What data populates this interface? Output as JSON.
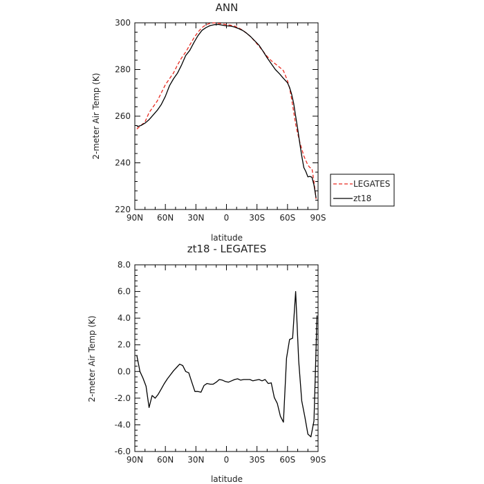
{
  "chart_data": [
    {
      "type": "line",
      "title": "ANN",
      "xlabel": "latitude",
      "ylabel": "2-meter Air Temp (K)",
      "x_tick_labels": [
        "90N",
        "60N",
        "30N",
        "0",
        "30S",
        "60S",
        "90S"
      ],
      "x_ticks": [
        90,
        60,
        30,
        0,
        -30,
        -60,
        -90
      ],
      "x_direction": "90N to 90S (latitude decreasing left to right)",
      "xlim": [
        90,
        -90
      ],
      "ylim": [
        220,
        300
      ],
      "y_ticks": [
        220,
        240,
        260,
        280,
        300
      ],
      "y_tick_labels": [
        "220",
        "240",
        "260",
        "280",
        "300"
      ],
      "grid": false,
      "legend_placement": "outside right, lower",
      "series": [
        {
          "name": "LEGATES",
          "color": "#e8281e",
          "style": "dashed",
          "x": [
            88,
            84,
            80,
            76,
            72,
            68,
            64,
            60,
            56,
            52,
            48,
            44,
            40,
            36,
            32,
            28,
            24,
            20,
            16,
            12,
            8,
            4,
            0,
            -4,
            -8,
            -12,
            -16,
            -20,
            -24,
            -28,
            -32,
            -36,
            -40,
            -44,
            -48,
            -52,
            -56,
            -60,
            -62,
            -64,
            -66,
            -68,
            -70,
            -72,
            -74,
            -76,
            -78,
            -80,
            -82,
            -84,
            -86,
            -88
          ],
          "values": [
            254.5,
            256,
            257.5,
            261.5,
            264,
            266.5,
            270,
            273.5,
            276,
            278.5,
            282,
            285,
            287.5,
            290.5,
            293.5,
            296,
            298,
            299.2,
            299.8,
            300,
            299.8,
            299.5,
            299.2,
            299,
            298.6,
            297.8,
            296.8,
            295.5,
            294,
            292,
            290,
            287.8,
            285.6,
            283.8,
            282.4,
            281,
            279.5,
            275.2,
            272,
            267.5,
            262,
            256.5,
            252.5,
            249,
            246,
            243,
            241,
            239,
            238,
            237.5,
            232,
            224.5
          ]
        },
        {
          "name": "zt18",
          "color": "#000000",
          "style": "solid",
          "x": [
            88,
            84,
            80,
            76,
            72,
            68,
            64,
            60,
            56,
            52,
            48,
            44,
            40,
            36,
            32,
            28,
            24,
            20,
            16,
            12,
            8,
            4,
            0,
            -4,
            -8,
            -12,
            -16,
            -20,
            -24,
            -28,
            -32,
            -36,
            -40,
            -44,
            -48,
            -52,
            -56,
            -60,
            -62,
            -64,
            -66,
            -68,
            -70,
            -72,
            -74,
            -76,
            -78,
            -80,
            -82,
            -84,
            -86,
            -88
          ],
          "values": [
            255.5,
            256,
            257,
            258.5,
            260.5,
            262.5,
            265,
            268.5,
            273,
            276,
            278.5,
            282,
            286,
            288.2,
            291.5,
            294.5,
            296.8,
            298,
            298.8,
            299.2,
            299.3,
            299,
            298.7,
            298.6,
            298.2,
            297.5,
            296.7,
            295.5,
            294,
            292.2,
            290.4,
            287.8,
            285,
            282.5,
            280,
            278.2,
            276.2,
            274.3,
            272.3,
            269.5,
            265.5,
            260,
            254.5,
            248.5,
            243,
            238,
            236.3,
            234,
            234.2,
            233.8,
            230.5,
            225
          ]
        }
      ]
    },
    {
      "type": "line",
      "title": "zt18 - LEGATES",
      "xlabel": "latitude",
      "ylabel": "2-meter Air Temp (K)",
      "x_tick_labels": [
        "90N",
        "60N",
        "30N",
        "0",
        "30S",
        "60S",
        "90S"
      ],
      "x_ticks": [
        90,
        60,
        30,
        0,
        -30,
        -60,
        -90
      ],
      "x_direction": "90N to 90S (latitude decreasing left to right)",
      "xlim": [
        90,
        -90
      ],
      "ylim": [
        -6,
        8
      ],
      "y_ticks": [
        -6,
        -4,
        -2,
        0,
        2,
        4,
        6,
        8
      ],
      "y_tick_labels": [
        "-6.0",
        "-4.0",
        "-2.0",
        "0.0",
        "2.0",
        "4.0",
        "6.0",
        "8.0"
      ],
      "grid": false,
      "series": [
        {
          "color": "#000000",
          "style": "solid",
          "x": [
            88,
            85,
            82,
            79,
            76,
            73,
            70,
            67,
            64,
            61,
            58,
            55,
            52,
            49,
            46,
            43,
            40,
            37,
            34,
            31,
            28,
            25,
            22,
            19,
            16,
            13,
            10,
            7,
            4,
            1,
            -2,
            -5,
            -8,
            -11,
            -14,
            -17,
            -20,
            -23,
            -26,
            -29,
            -32,
            -35,
            -38,
            -41,
            -44,
            -47,
            -50,
            -53,
            -56,
            -59,
            -62,
            -65,
            -68,
            -71,
            -74,
            -77,
            -80,
            -83,
            -86,
            -89
          ],
          "values": [
            1.2,
            0,
            -0.5,
            -1.1,
            -2.7,
            -1.8,
            -2,
            -1.7,
            -1.3,
            -0.9,
            -0.55,
            -0.25,
            0.05,
            0.3,
            0.55,
            0.45,
            0,
            -0.1,
            -0.8,
            -1.5,
            -1.5,
            -1.55,
            -1.05,
            -0.9,
            -0.95,
            -0.95,
            -0.8,
            -0.6,
            -0.65,
            -0.75,
            -0.8,
            -0.7,
            -0.6,
            -0.55,
            -0.65,
            -0.6,
            -0.6,
            -0.6,
            -0.7,
            -0.65,
            -0.6,
            -0.7,
            -0.6,
            -0.9,
            -0.85,
            -1.95,
            -2.4,
            -3.35,
            -3.8,
            1,
            2.4,
            2.5,
            6,
            0.8,
            -2.2,
            -3.4,
            -4.7,
            -4.9,
            -3.7,
            4.2
          ]
        }
      ]
    }
  ]
}
